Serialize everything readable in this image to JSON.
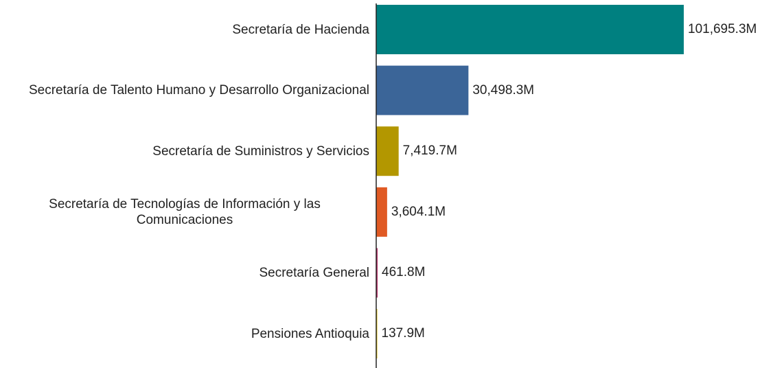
{
  "chart_data": {
    "type": "bar",
    "orientation": "horizontal",
    "categories": [
      "Secretaría de Hacienda",
      "Secretaría de Talento Humano y Desarrollo Organizacional",
      "Secretaría de Suministros y Servicios",
      "Secretaría de Tecnologías de Información y las Comunicaciones",
      "Secretaría General",
      "Pensiones Antioquia"
    ],
    "values": [
      101695.3,
      30498.3,
      7419.7,
      3604.1,
      461.8,
      137.9
    ],
    "value_labels": [
      "101,695.3M",
      "30,498.3M",
      "7,419.7M",
      "3,604.1M",
      "461.8M",
      "137.9M"
    ],
    "colors": [
      "#008080",
      "#3b6598",
      "#b39700",
      "#e05a24",
      "#b8336a",
      "#e0c200"
    ]
  }
}
